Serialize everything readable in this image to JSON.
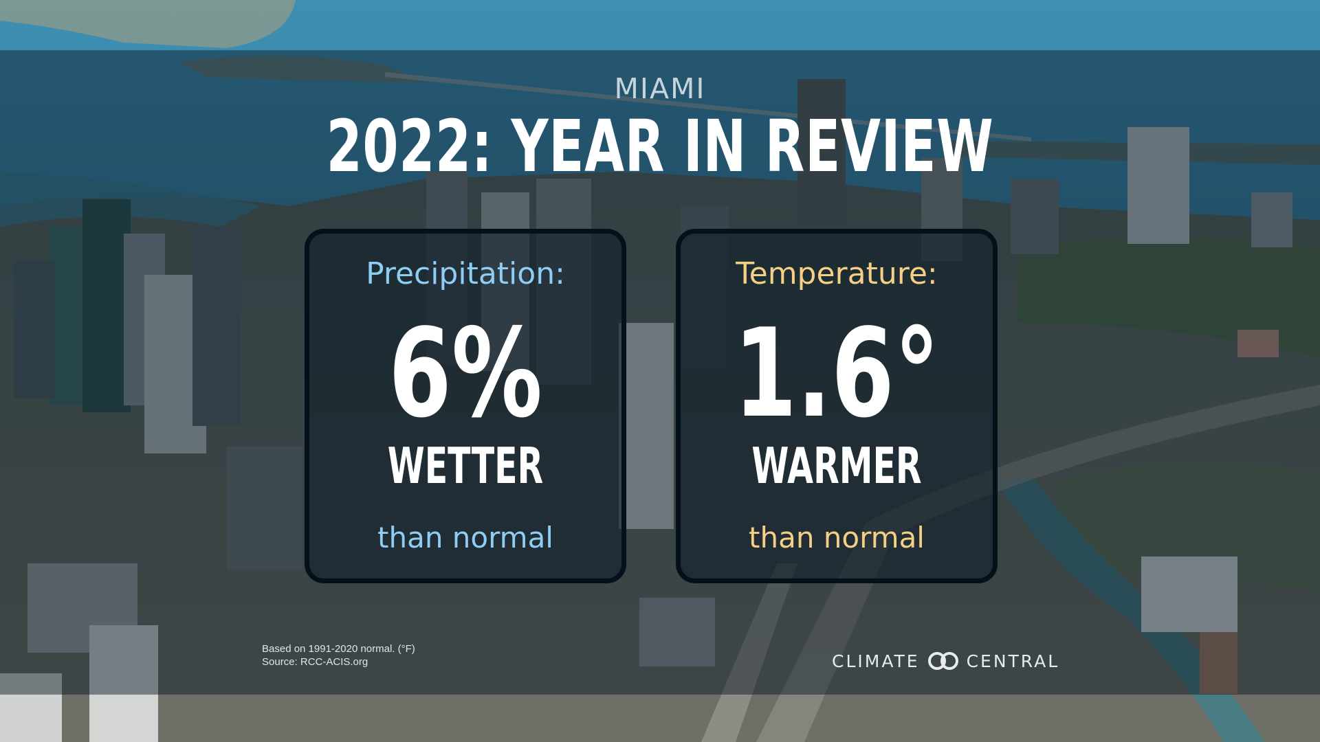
{
  "graphic": {
    "city": "MIAMI",
    "title": "2022: YEAR IN REVIEW"
  },
  "precipitation": {
    "label": "Precipitation:",
    "value": "6%",
    "descriptor": "WETTER",
    "comparison": "than normal",
    "color": "#8fcdf2"
  },
  "temperature": {
    "label": "Temperature:",
    "value": "1.6°",
    "descriptor": "WARMER",
    "comparison": "than normal",
    "color": "#f4cf85"
  },
  "footnote": {
    "line1": "Based on 1991-2020 normal. (°F)",
    "line2": "Source: RCC-ACIS.org"
  },
  "logo": {
    "left_word": "CLIMATE",
    "right_word": "CENTRAL",
    "icon": "interlocking-rings-icon"
  }
}
